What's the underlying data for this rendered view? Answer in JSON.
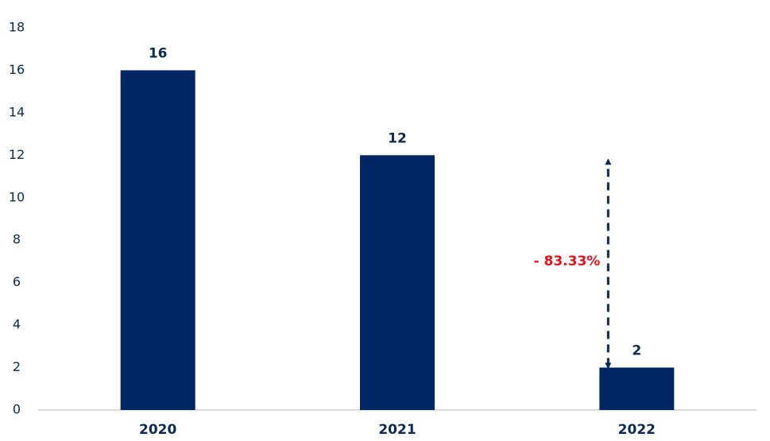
{
  "chart_data": {
    "type": "bar",
    "categories": [
      "2020",
      "2021",
      "2022"
    ],
    "values": [
      16,
      12,
      2
    ],
    "color": "#002664",
    "ylim": [
      0,
      18
    ],
    "yticks": [
      0,
      2,
      4,
      6,
      8,
      10,
      12,
      14,
      16,
      18
    ],
    "annotation": "- 83.33%",
    "annotation_color": "#e8121c"
  }
}
